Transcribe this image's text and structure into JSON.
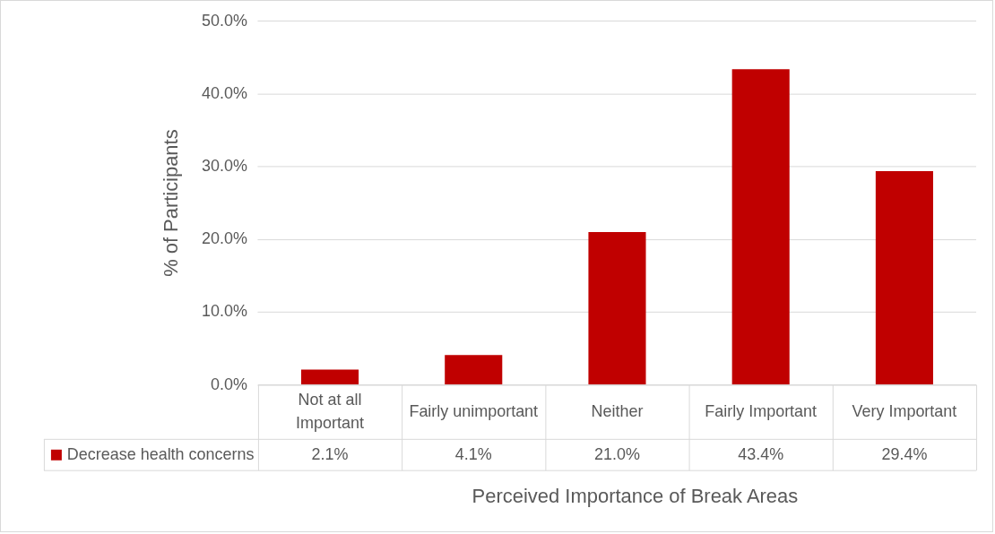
{
  "chart_data": {
    "type": "bar",
    "xlabel": "Perceived Importance of Break Areas",
    "ylabel": "% of Participants",
    "categories": [
      "Not at all Important",
      "Fairly unimportant",
      "Neither",
      "Fairly Important",
      "Very Important"
    ],
    "series": [
      {
        "name": "Decrease health concerns",
        "color": "#c00000",
        "values": [
          2.1,
          4.1,
          21.0,
          43.4,
          29.4
        ],
        "value_labels": [
          "2.1%",
          "4.1%",
          "21.0%",
          "43.4%",
          "29.4%"
        ]
      }
    ],
    "ylim": [
      0,
      50
    ],
    "yticks": [
      {
        "value": 0,
        "label": "0.0%"
      },
      {
        "value": 10,
        "label": "10.0%"
      },
      {
        "value": 20,
        "label": "20.0%"
      },
      {
        "value": 30,
        "label": "30.0%"
      },
      {
        "value": 40,
        "label": "40.0%"
      },
      {
        "value": 50,
        "label": "50.0%"
      }
    ],
    "grid": "y",
    "legend": "bottom"
  }
}
